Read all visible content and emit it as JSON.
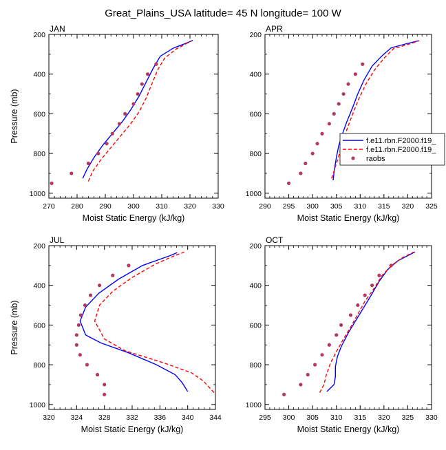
{
  "title": "Great_Plains_USA  latitude= 45 N longitude= 100 W",
  "legend": {
    "entries": [
      {
        "label": "f.e11.rbn.F2000.f19_",
        "style": "solid",
        "color": "#0000ff"
      },
      {
        "label": "f.e11.rbn.F2000.f19_",
        "style": "dashed",
        "color": "#ff0000"
      },
      {
        "label": "raobs",
        "style": "marker",
        "color": "#b03a60"
      }
    ]
  },
  "colors": {
    "model_solid": "#0000ff",
    "model_dashed": "#ff0000",
    "raobs": "#b03a60"
  },
  "chart_data": [
    {
      "type": "line",
      "panel_label": "JAN",
      "xlabel": "Moist Static Energy (kJ/kg)",
      "ylabel": "Pressure (mb)",
      "xlim": [
        270,
        330
      ],
      "ylim": [
        200,
        1025
      ],
      "y_reversed": true,
      "xticks": [
        270,
        280,
        290,
        300,
        310,
        320,
        330
      ],
      "yticks": [
        200,
        400,
        600,
        800,
        1000
      ],
      "series": [
        {
          "style": "solid",
          "points": [
            [
              282,
              925
            ],
            [
              283.5,
              880
            ],
            [
              286,
              820
            ],
            [
              289,
              760
            ],
            [
              292.5,
              700
            ],
            [
              296,
              640
            ],
            [
              299,
              580
            ],
            [
              302,
              510
            ],
            [
              304.5,
              440
            ],
            [
              307,
              370
            ],
            [
              309.5,
              310
            ],
            [
              314,
              270
            ],
            [
              318.5,
              245
            ],
            [
              321,
              230
            ]
          ]
        },
        {
          "style": "dashed",
          "points": [
            [
              284,
              940
            ],
            [
              285.5,
              890
            ],
            [
              288.5,
              830
            ],
            [
              292,
              770
            ],
            [
              295.5,
              710
            ],
            [
              299,
              650
            ],
            [
              302,
              590
            ],
            [
              304.5,
              520
            ],
            [
              306.5,
              450
            ],
            [
              308.5,
              380
            ],
            [
              311,
              320
            ],
            [
              315,
              275
            ],
            [
              318.5,
              248
            ],
            [
              320.5,
              233
            ]
          ]
        },
        {
          "style": "marker",
          "points": [
            [
              271,
              950
            ],
            [
              278,
              900
            ],
            [
              284,
              850
            ],
            [
              287.5,
              800
            ],
            [
              290.5,
              750
            ],
            [
              292.5,
              700
            ],
            [
              295,
              650
            ],
            [
              297,
              600
            ],
            [
              300,
              550
            ],
            [
              301.5,
              500
            ],
            [
              303,
              450
            ],
            [
              305,
              400
            ],
            [
              308,
              350
            ]
          ]
        }
      ]
    },
    {
      "type": "line",
      "panel_label": "APR",
      "xlabel": "Moist Static Energy (kJ/kg)",
      "ylabel": "",
      "xlim": [
        290,
        325
      ],
      "ylim": [
        200,
        1025
      ],
      "y_reversed": true,
      "xticks": [
        290,
        295,
        300,
        305,
        310,
        315,
        320,
        325
      ],
      "yticks": [
        200,
        400,
        600,
        800,
        1000
      ],
      "series": [
        {
          "style": "solid",
          "points": [
            [
              304.3,
              935
            ],
            [
              304.6,
              880
            ],
            [
              305,
              820
            ],
            [
              305.5,
              760
            ],
            [
              306.3,
              700
            ],
            [
              307.2,
              640
            ],
            [
              308.4,
              570
            ],
            [
              309.5,
              500
            ],
            [
              310.8,
              430
            ],
            [
              312.5,
              360
            ],
            [
              314.5,
              310
            ],
            [
              316.5,
              268
            ],
            [
              320,
              245
            ],
            [
              322.3,
              232
            ]
          ]
        },
        {
          "style": "dashed",
          "points": [
            [
              304.0,
              925
            ],
            [
              304.6,
              880
            ],
            [
              305.3,
              830
            ],
            [
              305.9,
              780
            ],
            [
              306.6,
              720
            ],
            [
              307.5,
              660
            ],
            [
              308.6,
              590
            ],
            [
              309.8,
              520
            ],
            [
              311.2,
              450
            ],
            [
              313.0,
              380
            ],
            [
              315.0,
              320
            ],
            [
              317.0,
              272
            ],
            [
              320.5,
              247
            ],
            [
              322.4,
              232
            ]
          ]
        },
        {
          "style": "marker",
          "points": [
            [
              295,
              950
            ],
            [
              297.5,
              900
            ],
            [
              298.5,
              850
            ],
            [
              300,
              800
            ],
            [
              301,
              750
            ],
            [
              302,
              700
            ],
            [
              303.5,
              650
            ],
            [
              304.5,
              600
            ],
            [
              305.5,
              550
            ],
            [
              306.5,
              500
            ],
            [
              307.5,
              450
            ],
            [
              309,
              400
            ],
            [
              310.5,
              350
            ]
          ]
        }
      ]
    },
    {
      "type": "line",
      "panel_label": "JUL",
      "xlabel": "Moist Static Energy (kJ/kg)",
      "ylabel": "Pressure (mb)",
      "xlim": [
        320,
        344
      ],
      "ylim": [
        200,
        1025
      ],
      "y_reversed": true,
      "xticks": [
        320,
        324,
        328,
        332,
        336,
        340,
        344
      ],
      "yticks": [
        200,
        400,
        600,
        800,
        1000
      ],
      "series": [
        {
          "style": "solid",
          "points": [
            [
              340,
              935
            ],
            [
              339.2,
              890
            ],
            [
              338.2,
              850
            ],
            [
              335.5,
              800
            ],
            [
              331.5,
              740
            ],
            [
              327.5,
              690
            ],
            [
              325.3,
              650
            ],
            [
              324.5,
              580
            ],
            [
              325.3,
              510
            ],
            [
              327.2,
              440
            ],
            [
              330,
              370
            ],
            [
              333.5,
              300
            ],
            [
              337.5,
              250
            ],
            [
              338.5,
              235
            ]
          ]
        },
        {
          "style": "dashed",
          "points": [
            [
              343.8,
              940
            ],
            [
              343.0,
              910
            ],
            [
              342.2,
              880
            ],
            [
              340.5,
              840
            ],
            [
              336.5,
              790
            ],
            [
              331.0,
              730
            ],
            [
              328.0,
              670
            ],
            [
              326.6,
              580
            ],
            [
              327.3,
              500
            ],
            [
              329.2,
              430
            ],
            [
              332.0,
              360
            ],
            [
              335.5,
              290
            ],
            [
              338.3,
              248
            ],
            [
              339.5,
              233
            ]
          ]
        },
        {
          "style": "marker",
          "points": [
            [
              328,
              950
            ],
            [
              328,
              900
            ],
            [
              327,
              850
            ],
            [
              325.5,
              800
            ],
            [
              324.5,
              750
            ],
            [
              324,
              700
            ],
            [
              324,
              650
            ],
            [
              324.3,
              600
            ],
            [
              324.6,
              550
            ],
            [
              325.2,
              500
            ],
            [
              326,
              450
            ],
            [
              327.3,
              400
            ],
            [
              329.2,
              350
            ],
            [
              331.5,
              300
            ]
          ]
        }
      ]
    },
    {
      "type": "line",
      "panel_label": "OCT",
      "xlabel": "Moist Static Energy (kJ/kg)",
      "ylabel": "",
      "xlim": [
        295,
        330
      ],
      "ylim": [
        200,
        1025
      ],
      "y_reversed": true,
      "xticks": [
        295,
        300,
        305,
        310,
        315,
        320,
        325,
        330
      ],
      "yticks": [
        200,
        400,
        600,
        800,
        1000
      ],
      "series": [
        {
          "style": "solid",
          "points": [
            [
              308,
              935
            ],
            [
              309.5,
              900
            ],
            [
              309.8,
              860
            ],
            [
              309.8,
              810
            ],
            [
              310.2,
              760
            ],
            [
              311,
              710
            ],
            [
              312.5,
              640
            ],
            [
              314,
              580
            ],
            [
              315.8,
              510
            ],
            [
              317.3,
              450
            ],
            [
              319,
              380
            ],
            [
              320.8,
              320
            ],
            [
              323,
              275
            ],
            [
              326.5,
              232
            ]
          ]
        },
        {
          "style": "dashed",
          "points": [
            [
              306.5,
              940
            ],
            [
              307.4,
              900
            ],
            [
              307.9,
              850
            ],
            [
              308.8,
              790
            ],
            [
              310.1,
              730
            ],
            [
              311.5,
              670
            ],
            [
              313.0,
              610
            ],
            [
              314.4,
              550
            ],
            [
              316.0,
              480
            ],
            [
              317.8,
              420
            ],
            [
              319.6,
              350
            ],
            [
              321.6,
              300
            ],
            [
              323.8,
              262
            ],
            [
              326.2,
              233
            ]
          ]
        },
        {
          "style": "marker",
          "points": [
            [
              299,
              950
            ],
            [
              302.5,
              900
            ],
            [
              304,
              850
            ],
            [
              305.5,
              800
            ],
            [
              307,
              750
            ],
            [
              308.5,
              700
            ],
            [
              310,
              650
            ],
            [
              311,
              600
            ],
            [
              313,
              550
            ],
            [
              314.5,
              500
            ],
            [
              316,
              450
            ],
            [
              317.5,
              400
            ],
            [
              319,
              350
            ],
            [
              321.5,
              300
            ]
          ]
        }
      ]
    }
  ]
}
